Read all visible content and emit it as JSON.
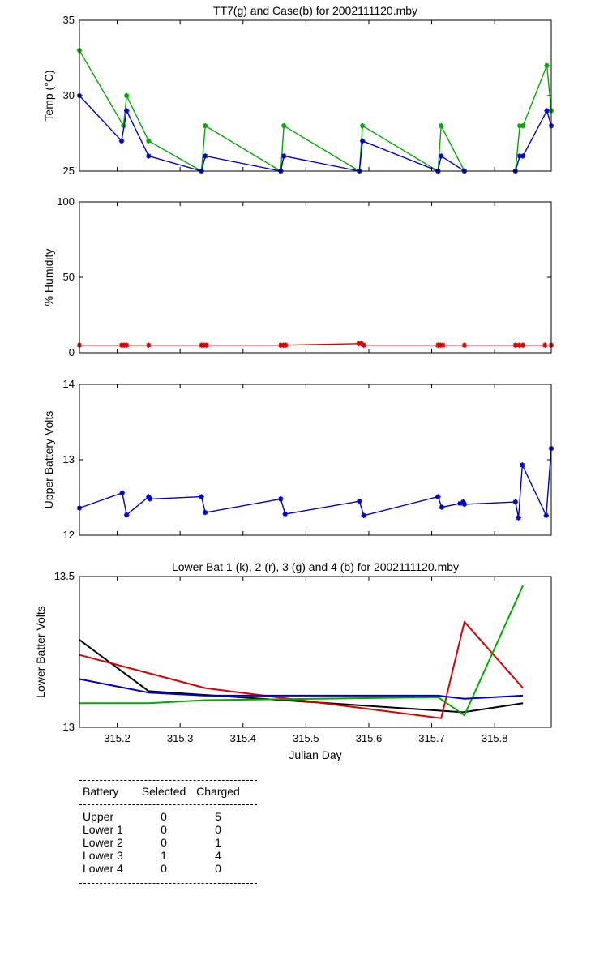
{
  "chart_data": [
    {
      "type": "line",
      "title": "TT7(g) and Case(b) for 2002111120.mby",
      "ylabel": "Temp (°C)",
      "xlabel": "",
      "xlim": [
        315.14,
        315.89
      ],
      "ylim": [
        25,
        35
      ],
      "yticks": [
        "25",
        "30",
        "35"
      ],
      "grid": false,
      "series": [
        {
          "name": "TT7",
          "color": "#00aa00",
          "marker": "star",
          "x": [
            315.14,
            315.21,
            315.215,
            315.25,
            315.334,
            315.34,
            315.46,
            315.465,
            315.585,
            315.59,
            315.71,
            315.715,
            315.752,
            "gap",
            315.833,
            315.84,
            315.845,
            315.883,
            315.89
          ],
          "y": [
            33,
            28,
            30,
            27,
            25,
            28,
            25,
            28,
            25,
            28,
            25,
            28,
            25,
            null,
            25,
            28,
            28,
            32,
            29
          ]
        },
        {
          "name": "Case",
          "color": "#0000cc",
          "marker": "star",
          "x": [
            315.14,
            315.207,
            315.215,
            315.25,
            315.334,
            315.34,
            315.46,
            315.465,
            315.585,
            315.59,
            315.71,
            315.715,
            315.752,
            "gap",
            315.833,
            315.84,
            315.845,
            315.883,
            315.89
          ],
          "y": [
            30,
            27,
            29,
            26,
            25,
            26,
            25,
            26,
            25,
            27,
            25,
            26,
            25,
            null,
            25,
            26,
            26,
            29,
            28
          ]
        }
      ]
    },
    {
      "type": "line",
      "title": "",
      "ylabel": "% Humidity",
      "xlabel": "",
      "xlim": [
        315.14,
        315.89
      ],
      "ylim": [
        0,
        100
      ],
      "yticks": [
        "0",
        "50",
        "100"
      ],
      "grid": false,
      "series": [
        {
          "name": "",
          "color": "#dd0000",
          "marker": "star",
          "x": [
            315.14,
            315.207,
            315.211,
            315.215,
            315.25,
            315.334,
            315.338,
            315.342,
            315.46,
            315.464,
            315.468,
            315.584,
            315.588,
            315.592,
            315.71,
            315.714,
            315.718,
            315.752,
            315.833,
            315.839,
            315.845,
            315.88,
            315.89
          ],
          "y": [
            5,
            5,
            5,
            5,
            5,
            5,
            5,
            5,
            5,
            5,
            5,
            6,
            6,
            5,
            5,
            5,
            5,
            5,
            5,
            5,
            5,
            5,
            5
          ]
        }
      ]
    },
    {
      "type": "line",
      "title": "",
      "ylabel": "Upper Battery Volts",
      "xlabel": "",
      "xlim": [
        315.14,
        315.89
      ],
      "ylim": [
        12,
        14
      ],
      "yticks": [
        "12",
        "13",
        "14"
      ],
      "grid": false,
      "series": [
        {
          "name": "",
          "color": "#0000cc",
          "marker": "star",
          "x": [
            315.14,
            315.208,
            315.215,
            315.25,
            315.252,
            315.334,
            315.34,
            315.46,
            315.467,
            315.585,
            315.592,
            315.71,
            315.716,
            315.745,
            315.75,
            315.752,
            315.833,
            315.838,
            315.844,
            315.882,
            315.89
          ],
          "y": [
            12.36,
            12.56,
            12.27,
            12.51,
            12.48,
            12.51,
            12.3,
            12.48,
            12.28,
            12.45,
            12.26,
            12.51,
            12.37,
            12.42,
            12.44,
            12.41,
            12.44,
            12.23,
            12.93,
            12.26,
            13.15
          ]
        }
      ]
    },
    {
      "type": "line",
      "title": "Lower Bat 1 (k), 2 (r), 3 (g) and 4 (b) for 2002111120.mby",
      "ylabel": "Lower Batter Volts",
      "xlabel": "Julian Day",
      "xlim": [
        315.14,
        315.89
      ],
      "ylim": [
        13,
        13.5
      ],
      "yticks": [
        "13",
        "13.5"
      ],
      "xticks": [
        "315.2",
        "315.3",
        "315.4",
        "315.5",
        "315.6",
        "315.7",
        "315.8"
      ],
      "grid": false,
      "series": [
        {
          "name": "Lower Bat 1",
          "color": "#000000",
          "marker": "none",
          "x": [
            315.14,
            315.25,
            315.75,
            315.845
          ],
          "y": [
            13.29,
            13.12,
            13.05,
            13.08
          ]
        },
        {
          "name": "Lower Bat 2",
          "color": "#dd0000",
          "marker": "none",
          "x": [
            315.14,
            315.34,
            315.715,
            315.752,
            315.845
          ],
          "y": [
            13.24,
            13.13,
            13.03,
            13.35,
            13.13
          ]
        },
        {
          "name": "Lower Bat 3",
          "color": "#00aa00",
          "marker": "none",
          "x": [
            315.14,
            315.25,
            315.34,
            315.71,
            315.752,
            315.845
          ],
          "y": [
            13.08,
            13.08,
            13.09,
            13.1,
            13.04,
            13.47
          ]
        },
        {
          "name": "Lower Bat 4",
          "color": "#0000cc",
          "marker": "none",
          "x": [
            315.14,
            315.25,
            315.34,
            315.71,
            315.752,
            315.845
          ],
          "y": [
            13.16,
            13.115,
            13.105,
            13.105,
            13.095,
            13.105
          ]
        }
      ]
    }
  ],
  "battery_table": {
    "headers": [
      "Battery",
      "Selected",
      "Charged"
    ],
    "rows": [
      [
        "Upper",
        "0",
        "5"
      ],
      [
        "Lower 1",
        "0",
        "0"
      ],
      [
        "Lower 2",
        "0",
        "1"
      ],
      [
        "Lower 3",
        "1",
        "4"
      ],
      [
        "Lower 4",
        "0",
        "0"
      ]
    ]
  }
}
